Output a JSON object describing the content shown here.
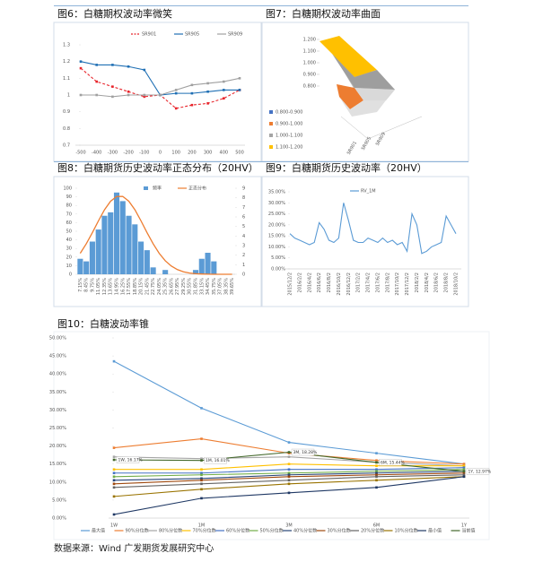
{
  "chart_data": [
    {
      "type": "line",
      "title": "图6：白糖期权波动率微笑",
      "categories": [
        -500,
        -400,
        -300,
        -200,
        -100,
        0,
        100,
        200,
        300,
        400,
        500
      ],
      "series": [
        {
          "name": "SR901",
          "color": "#e8242b",
          "dashed": true,
          "values": [
            1.16,
            1.08,
            1.05,
            1.02,
            0.99,
            1.0,
            0.92,
            0.94,
            0.95,
            0.98,
            1.03
          ]
        },
        {
          "name": "SR905",
          "color": "#1f6fb4",
          "values": [
            1.2,
            1.18,
            1.18,
            1.17,
            1.15,
            1.0,
            1.01,
            1.01,
            1.02,
            1.03,
            1.03
          ]
        },
        {
          "name": "SR909",
          "color": "#a0a0a0",
          "values": [
            1.0,
            1.0,
            0.99,
            1.0,
            1.0,
            1.0,
            1.03,
            1.06,
            1.07,
            1.08,
            1.1
          ]
        }
      ],
      "ylim": [
        0.7,
        1.3
      ],
      "yticks": [
        0.7,
        0.8,
        0.9,
        1,
        1.1,
        1.2,
        1.3
      ],
      "legend": "top",
      "grid": false
    },
    {
      "type": "surface",
      "title": "图7：白糖期权波动率曲面",
      "categories": [
        "SR901",
        "SR905",
        "SR909"
      ],
      "zlim": [
        0.8,
        1.2
      ],
      "zticks": [
        {
          "value": 0.8,
          "label": "0.800"
        },
        {
          "value": 0.9,
          "label": "0.900"
        },
        {
          "value": 1.0,
          "label": "1.000"
        },
        {
          "value": 1.1,
          "label": "1.100"
        },
        {
          "value": 1.2,
          "label": "1.200"
        }
      ],
      "series": [
        {
          "name": "0.800-0.900",
          "color": "#4472c4"
        },
        {
          "name": "0.900-1.000",
          "color": "#ed7d31"
        },
        {
          "name": "1.000-1.100",
          "color": "#a5a5a5"
        },
        {
          "name": "1.100-1.200",
          "color": "#ffc000"
        }
      ],
      "legend": "left"
    },
    {
      "type": "combo",
      "title": "图8：白糖期货历史波动率正态分布（20HV）",
      "categories": [
        "7.15%",
        "8.45%",
        "9.75%",
        "11.05%",
        "12.35%",
        "13.65%",
        "14.95%",
        "16.25%",
        "17.55%",
        "18.85%",
        "20.15%",
        "21.45%",
        "22.75%",
        "24.05%",
        "25.35%",
        "26.65%",
        "27.95%",
        "29.25%",
        "30.55%",
        "31.85%",
        "33.15%",
        "34.45%",
        "35.75%",
        "37.05%",
        "38.35%",
        "39.65%"
      ],
      "series": [
        {
          "name": "频率",
          "type": "bar",
          "color": "#5b9bd5",
          "values": [
            18,
            15,
            38,
            52,
            68,
            72,
            95,
            85,
            68,
            58,
            38,
            28,
            8,
            0,
            5,
            0,
            0,
            0,
            0,
            5,
            18,
            25,
            15,
            0,
            0,
            0
          ]
        },
        {
          "name": "正态分布",
          "type": "line",
          "axis": "y2",
          "color": "#ed7d31",
          "values": [
            2.19,
            3.19,
            4.35,
            5.59,
            6.75,
            7.64,
            8.14,
            8.14,
            7.64,
            6.75,
            5.59,
            4.35,
            3.19,
            2.19,
            1.41,
            0.86,
            0.49,
            0.26,
            0.13,
            0.06,
            0.03,
            0.01,
            0,
            0,
            0,
            0
          ]
        }
      ],
      "ylim": [
        0,
        100
      ],
      "yticks": [
        0,
        10,
        20,
        30,
        40,
        50,
        60,
        70,
        80,
        90,
        100
      ],
      "y2lim": [
        0,
        9
      ],
      "y2ticks": [
        0,
        1,
        2,
        3,
        4,
        5,
        6,
        7,
        8,
        9
      ],
      "legend": "top"
    },
    {
      "type": "line",
      "title": "图9：白糖期货历史波动率（20HV）",
      "categories": [
        "2015/12/2",
        null,
        "2016/2/2",
        null,
        "2016/4/2",
        null,
        "2016/6/2",
        null,
        "2016/8/2",
        null,
        "2016/10/2",
        null,
        "2016/12/2",
        null,
        "2017/2/2",
        null,
        "2017/4/2",
        null,
        "2017/6/2",
        null,
        "2017/8/2",
        null,
        "2017/10/2",
        null,
        "2017/12/2",
        null,
        "2018/2/2",
        null,
        "2018/4/2",
        null,
        "2018/6/2",
        null,
        "2018/8/2",
        null,
        "2018/10/2"
      ],
      "series": [
        {
          "name": "RV_1M",
          "color": "#5b9bd5",
          "values": [
            16,
            14,
            13,
            12,
            11,
            12,
            21,
            18,
            13,
            12,
            14,
            30,
            22,
            13,
            12,
            12,
            14,
            13,
            12,
            14,
            12,
            13,
            11,
            12,
            8,
            25,
            20,
            7,
            8,
            10,
            11,
            12,
            24,
            20,
            16
          ]
        }
      ],
      "ylim": [
        0,
        35
      ],
      "yticks": [
        {
          "value": 0,
          "label": "0.00%"
        },
        {
          "value": 5,
          "label": "5.00%"
        },
        {
          "value": 10,
          "label": "10.00%"
        },
        {
          "value": 15,
          "label": "15.00%"
        },
        {
          "value": 20,
          "label": "20.00%"
        },
        {
          "value": 25,
          "label": "25.00%"
        },
        {
          "value": 30,
          "label": "30.00%"
        },
        {
          "value": 35,
          "label": "35.00%"
        }
      ],
      "legend": "top",
      "grid": false
    },
    {
      "type": "line",
      "title": "图10：白糖波动率锥",
      "categories": [
        "1W",
        "1M",
        "3M",
        "6M",
        "1Y"
      ],
      "series": [
        {
          "name": "最大值",
          "color": "#5b9bd5",
          "values": [
            43.5,
            30.5,
            21,
            18,
            15
          ]
        },
        {
          "name": "90%分位数",
          "color": "#ed7d31",
          "values": [
            19.5,
            22,
            18,
            16,
            15
          ]
        },
        {
          "name": "80%分位数",
          "color": "#a5a5a5",
          "values": [
            17,
            16.5,
            17,
            15.5,
            14.5
          ]
        },
        {
          "name": "70%分位数",
          "color": "#ffc000",
          "values": [
            13.5,
            13.5,
            15,
            14.5,
            14.5
          ]
        },
        {
          "name": "60%分位数",
          "color": "#4472c4",
          "values": [
            12.5,
            12.5,
            13.5,
            13.5,
            14
          ]
        },
        {
          "name": "50%分位数",
          "color": "#70ad47",
          "values": [
            11.5,
            12,
            12.5,
            13,
            13.5
          ]
        },
        {
          "name": "40%分位数",
          "color": "#264478",
          "values": [
            10.5,
            11,
            12,
            12.5,
            13
          ]
        },
        {
          "name": "30%分位数",
          "color": "#9e480e",
          "values": [
            9.5,
            10.5,
            11.5,
            12,
            12.5
          ]
        },
        {
          "name": "20%分位数",
          "color": "#636363",
          "values": [
            8.5,
            9.5,
            10.5,
            11.5,
            12
          ]
        },
        {
          "name": "10%分位数",
          "color": "#997300",
          "values": [
            6,
            8,
            9.5,
            10.5,
            11.5
          ]
        },
        {
          "name": "最小值",
          "color": "#1f3864",
          "values": [
            1,
            5.5,
            7,
            8.5,
            11.5
          ]
        },
        {
          "name": "当前值",
          "color": "#43682b",
          "values": [
            16.17,
            16.01,
            18.28,
            15.44,
            12.97
          ],
          "value_labels": [
            "1W, 16.17%",
            "1M, 16.01%",
            "3M, 18.28%",
            "6M, 15.44%",
            "1Y, 12.97%"
          ]
        }
      ],
      "ylim": [
        0,
        50
      ],
      "yticks": [
        {
          "value": 0,
          "label": "0.00%"
        },
        {
          "value": 5,
          "label": "5.00%"
        },
        {
          "value": 10,
          "label": "10.00%"
        },
        {
          "value": 15,
          "label": "15.00%"
        },
        {
          "value": 20,
          "label": "20.00%"
        },
        {
          "value": 25,
          "label": "25.00%"
        },
        {
          "value": 30,
          "label": "30.00%"
        },
        {
          "value": 35,
          "label": "35.00%"
        },
        {
          "value": 40,
          "label": "40.00%"
        },
        {
          "value": 45,
          "label": "45.00%"
        },
        {
          "value": 50,
          "label": "50.00%"
        }
      ],
      "legend": "bottom",
      "grid": false
    }
  ],
  "source": "数据来源：Wind 广发期货发展研究中心"
}
